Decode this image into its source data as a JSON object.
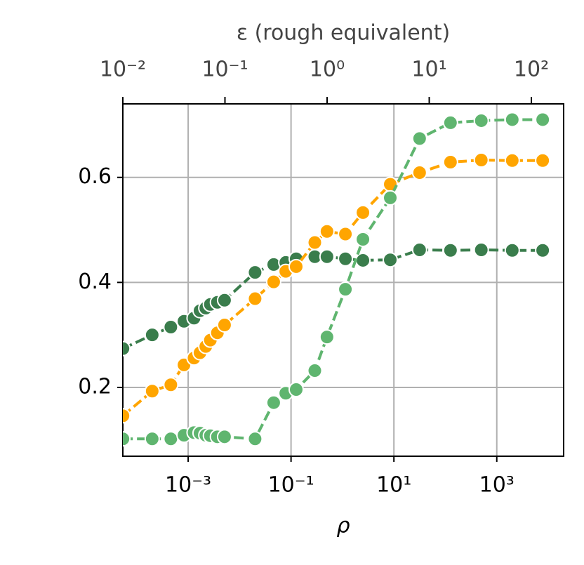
{
  "chart_data": {
    "type": "line",
    "xlabel": "ρ",
    "x2label": "ε (rough equivalent)",
    "xscale": "log",
    "x2scale": "log",
    "grid": true,
    "x": [
      5.4e-05,
      0.0002,
      0.00046,
      0.00083,
      0.0013,
      0.0017,
      0.0022,
      0.0027,
      0.0037,
      0.0051,
      0.02,
      0.046,
      0.079,
      0.126,
      0.29,
      0.5,
      1.14,
      2.5,
      8.5,
      31.6,
      126,
      500,
      2000,
      7800
    ],
    "xlim": [
      5.37e-05,
      19950
    ],
    "xticks": [
      {
        "value": 0.001,
        "label": "10⁻³"
      },
      {
        "value": 0.1,
        "label": "10⁻¹"
      },
      {
        "value": 10,
        "label": "10¹"
      },
      {
        "value": 1000,
        "label": "10³"
      }
    ],
    "x2lim": [
      0.01,
      207
    ],
    "x2ticks": [
      {
        "value": 0.01,
        "label": "10⁻²"
      },
      {
        "value": 0.1,
        "label": "10⁻¹"
      },
      {
        "value": 1,
        "label": "10⁰"
      },
      {
        "value": 10,
        "label": "10¹"
      },
      {
        "value": 100,
        "label": "10²"
      }
    ],
    "ylim": [
      0.069,
      0.74
    ],
    "yticks": [
      0.2,
      0.4,
      0.6
    ],
    "series": [
      {
        "color": "#3a7d4c",
        "values": [
          0.274,
          0.3,
          0.315,
          0.326,
          0.332,
          0.346,
          0.351,
          0.358,
          0.362,
          0.366,
          0.419,
          0.434,
          0.438,
          0.445,
          0.449,
          0.449,
          0.445,
          0.442,
          0.443,
          0.462,
          0.461,
          0.462,
          0.461,
          0.461
        ]
      },
      {
        "color": "#ffa500",
        "values": [
          0.146,
          0.193,
          0.205,
          0.243,
          0.256,
          0.266,
          0.278,
          0.29,
          0.304,
          0.319,
          0.369,
          0.401,
          0.421,
          0.43,
          0.476,
          0.497,
          0.492,
          0.533,
          0.587,
          0.609,
          0.629,
          0.633,
          0.632,
          0.632
        ]
      },
      {
        "color": "#5fb56f",
        "values": [
          0.102,
          0.102,
          0.102,
          0.109,
          0.114,
          0.113,
          0.109,
          0.108,
          0.106,
          0.106,
          0.102,
          0.171,
          0.189,
          0.196,
          0.232,
          0.296,
          0.387,
          0.482,
          0.561,
          0.674,
          0.704,
          0.708,
          0.71,
          0.71
        ]
      }
    ]
  }
}
